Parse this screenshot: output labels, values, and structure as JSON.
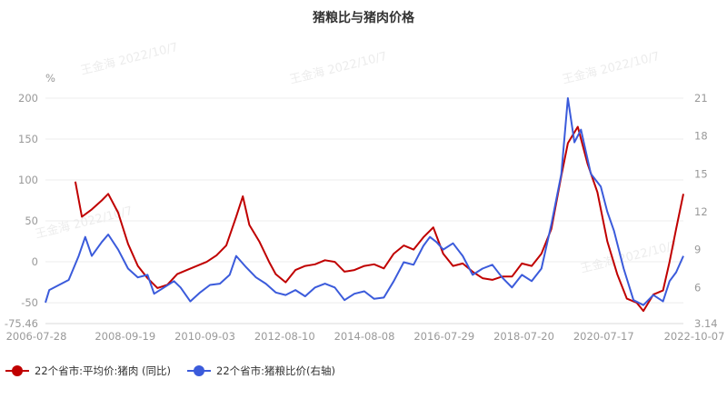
{
  "chart_data": {
    "type": "line",
    "title": "猪粮比与猪肉价格",
    "left_axis": {
      "unit_label": "%",
      "ticks": [
        "200",
        "150",
        "100",
        "50",
        "0",
        "-50"
      ],
      "min_label": "-75.46",
      "min": -75.46,
      "max": 200
    },
    "right_axis": {
      "ticks": [
        "21",
        "18",
        "15",
        "12",
        "9",
        "6"
      ],
      "min_label": "3.14",
      "min": 3.14,
      "max": 21
    },
    "x_ticks": [
      "2006-07-28",
      "2008-09-19",
      "2010-09-03",
      "2012-08-10",
      "2014-08-08",
      "2016-07-29",
      "2018-07-20",
      "2020-07-17",
      "2022-10-07"
    ],
    "x_range": [
      "2006-07-28",
      "2022-10-07"
    ],
    "grid": true,
    "legend_position": "bottom-left",
    "watermark": "王金海 2022/10/7",
    "series": [
      {
        "name": "22个省市:平均价:猪肉 (同比)",
        "axis": "left",
        "color": "#c00000",
        "points": [
          [
            "2007-05-01",
            98
          ],
          [
            "2007-07-01",
            55
          ],
          [
            "2007-10-01",
            64
          ],
          [
            "2008-01-01",
            75
          ],
          [
            "2008-03-01",
            83
          ],
          [
            "2008-06-01",
            60
          ],
          [
            "2008-09-01",
            22
          ],
          [
            "2008-12-01",
            -5
          ],
          [
            "2009-03-01",
            -20
          ],
          [
            "2009-06-01",
            -32
          ],
          [
            "2009-09-01",
            -28
          ],
          [
            "2009-12-01",
            -15
          ],
          [
            "2010-03-01",
            -10
          ],
          [
            "2010-06-01",
            -5
          ],
          [
            "2010-09-01",
            0
          ],
          [
            "2010-12-01",
            8
          ],
          [
            "2011-03-01",
            20
          ],
          [
            "2011-06-01",
            55
          ],
          [
            "2011-08-01",
            80
          ],
          [
            "2011-10-01",
            45
          ],
          [
            "2012-01-01",
            25
          ],
          [
            "2012-04-01",
            0
          ],
          [
            "2012-06-01",
            -15
          ],
          [
            "2012-09-01",
            -25
          ],
          [
            "2012-12-01",
            -10
          ],
          [
            "2013-03-01",
            -5
          ],
          [
            "2013-06-01",
            -3
          ],
          [
            "2013-09-01",
            2
          ],
          [
            "2013-12-01",
            0
          ],
          [
            "2014-03-01",
            -12
          ],
          [
            "2014-06-01",
            -10
          ],
          [
            "2014-09-01",
            -5
          ],
          [
            "2014-12-01",
            -3
          ],
          [
            "2015-03-01",
            -8
          ],
          [
            "2015-06-01",
            10
          ],
          [
            "2015-09-01",
            20
          ],
          [
            "2015-12-01",
            15
          ],
          [
            "2016-03-01",
            30
          ],
          [
            "2016-06-01",
            42
          ],
          [
            "2016-09-01",
            10
          ],
          [
            "2016-12-01",
            -5
          ],
          [
            "2017-03-01",
            -2
          ],
          [
            "2017-06-01",
            -12
          ],
          [
            "2017-09-01",
            -20
          ],
          [
            "2017-12-01",
            -22
          ],
          [
            "2018-03-01",
            -18
          ],
          [
            "2018-06-01",
            -18
          ],
          [
            "2018-09-01",
            -2
          ],
          [
            "2018-12-01",
            -5
          ],
          [
            "2019-03-01",
            10
          ],
          [
            "2019-06-01",
            40
          ],
          [
            "2019-09-01",
            105
          ],
          [
            "2019-11-01",
            145
          ],
          [
            "2020-02-01",
            165
          ],
          [
            "2020-05-01",
            120
          ],
          [
            "2020-08-01",
            85
          ],
          [
            "2020-11-01",
            25
          ],
          [
            "2021-02-01",
            -15
          ],
          [
            "2021-05-01",
            -45
          ],
          [
            "2021-08-01",
            -50
          ],
          [
            "2021-10-01",
            -60
          ],
          [
            "2022-01-01",
            -40
          ],
          [
            "2022-04-01",
            -35
          ],
          [
            "2022-06-01",
            0
          ],
          [
            "2022-08-01",
            40
          ],
          [
            "2022-10-07",
            83
          ]
        ]
      },
      {
        "name": "22个省市:猪粮比价(右轴)",
        "axis": "right",
        "color": "#3b5bdb",
        "points": [
          [
            "2006-07-28",
            4.8
          ],
          [
            "2006-09-01",
            5.8
          ],
          [
            "2006-12-01",
            6.2
          ],
          [
            "2007-03-01",
            6.6
          ],
          [
            "2007-06-01",
            8.5
          ],
          [
            "2007-08-01",
            10.0
          ],
          [
            "2007-10-01",
            8.5
          ],
          [
            "2008-01-01",
            9.6
          ],
          [
            "2008-03-01",
            10.2
          ],
          [
            "2008-06-01",
            9.0
          ],
          [
            "2008-09-01",
            7.5
          ],
          [
            "2008-12-01",
            6.8
          ],
          [
            "2009-03-01",
            7.0
          ],
          [
            "2009-05-01",
            5.5
          ],
          [
            "2009-08-01",
            6.0
          ],
          [
            "2009-11-01",
            6.5
          ],
          [
            "2010-01-01",
            6.0
          ],
          [
            "2010-04-01",
            4.9
          ],
          [
            "2010-07-01",
            5.6
          ],
          [
            "2010-10-01",
            6.2
          ],
          [
            "2011-01-01",
            6.3
          ],
          [
            "2011-04-01",
            7.0
          ],
          [
            "2011-06-01",
            8.5
          ],
          [
            "2011-09-01",
            7.6
          ],
          [
            "2011-12-01",
            6.8
          ],
          [
            "2012-03-01",
            6.3
          ],
          [
            "2012-06-01",
            5.6
          ],
          [
            "2012-09-01",
            5.4
          ],
          [
            "2012-12-01",
            5.8
          ],
          [
            "2013-03-01",
            5.3
          ],
          [
            "2013-06-01",
            6.0
          ],
          [
            "2013-09-01",
            6.3
          ],
          [
            "2013-12-01",
            6.0
          ],
          [
            "2014-03-01",
            5.0
          ],
          [
            "2014-06-01",
            5.5
          ],
          [
            "2014-09-01",
            5.7
          ],
          [
            "2014-12-01",
            5.1
          ],
          [
            "2015-03-01",
            5.2
          ],
          [
            "2015-06-01",
            6.5
          ],
          [
            "2015-09-01",
            8.0
          ],
          [
            "2015-12-01",
            7.8
          ],
          [
            "2016-03-01",
            9.3
          ],
          [
            "2016-05-01",
            10.0
          ],
          [
            "2016-07-01",
            9.6
          ],
          [
            "2016-09-01",
            9.0
          ],
          [
            "2016-12-01",
            9.5
          ],
          [
            "2017-03-01",
            8.5
          ],
          [
            "2017-06-01",
            7.0
          ],
          [
            "2017-09-01",
            7.5
          ],
          [
            "2017-12-01",
            7.8
          ],
          [
            "2018-03-01",
            6.8
          ],
          [
            "2018-06-01",
            6.0
          ],
          [
            "2018-09-01",
            7.0
          ],
          [
            "2018-12-01",
            6.5
          ],
          [
            "2019-03-01",
            7.5
          ],
          [
            "2019-06-01",
            11.0
          ],
          [
            "2019-09-01",
            15.0
          ],
          [
            "2019-11-01",
            21.0
          ],
          [
            "2020-01-01",
            17.5
          ],
          [
            "2020-03-01",
            18.5
          ],
          [
            "2020-06-01",
            15.0
          ],
          [
            "2020-09-01",
            14.0
          ],
          [
            "2020-11-01",
            12.0
          ],
          [
            "2021-01-01",
            10.5
          ],
          [
            "2021-04-01",
            7.5
          ],
          [
            "2021-07-01",
            5.0
          ],
          [
            "2021-10-01",
            4.6
          ],
          [
            "2022-01-01",
            5.4
          ],
          [
            "2022-04-01",
            4.9
          ],
          [
            "2022-06-01",
            6.5
          ],
          [
            "2022-08-01",
            7.2
          ],
          [
            "2022-10-07",
            8.5
          ]
        ]
      }
    ]
  }
}
